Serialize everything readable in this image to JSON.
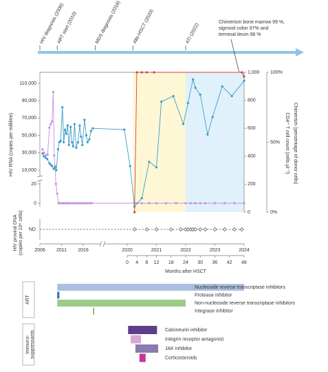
{
  "chart_data": [
    {
      "type": "timeline",
      "events": [
        {
          "label": "HIV diagnosis (2006)",
          "x": 2006
        },
        {
          "label": "ART start (2010)",
          "x": 2010
        },
        {
          "label": "MDS diagnosis (2018)",
          "x": 2018.8
        },
        {
          "label": "Allo-HSCT (2020)",
          "x": 2020.2
        },
        {
          "label": "ATI (2022)",
          "x": 2022
        }
      ],
      "annotation": [
        "Chimerism bone marrow 99 %,",
        "sigmoid colon 97% and",
        "terminal ileum 98 %"
      ],
      "color": "#8fc4e6"
    },
    {
      "type": "line",
      "ylabel": "HIV RNA (copies per millilitre)",
      "y2label": "CD4⁺ T cell count (cells µl⁻¹)",
      "y3label": "Chimerism (percentage of donor cells)",
      "xlabel": "Months after HSCT",
      "xticks": [
        2006,
        2011,
        2016,
        2020,
        2021,
        2022,
        2023,
        2024
      ],
      "month_ticks": [
        0,
        4,
        8,
        12,
        18,
        24,
        30,
        36,
        42,
        48
      ],
      "ylim_low": [
        0,
        20
      ],
      "yticks_low": [
        0,
        20
      ],
      "ylim": [
        10000,
        110000
      ],
      "yticks": [
        {
          "value": 10000,
          "label": "10,000"
        },
        {
          "value": 30000,
          "label": "30,000"
        },
        {
          "value": 50000,
          "label": "50,000"
        },
        {
          "value": 70000,
          "label": "70,000"
        },
        {
          "value": 90000,
          "label": "90,000"
        },
        {
          "value": 110000,
          "label": "110,000"
        }
      ],
      "y2lim": [
        0,
        1000
      ],
      "y2ticks": [
        0,
        200,
        400,
        600,
        800,
        {
          "value": 1000,
          "label": "1,000"
        }
      ],
      "y3lim": [
        0,
        100
      ],
      "y3ticks": [
        {
          "value": 0,
          "label": "0%"
        },
        {
          "value": 50,
          "label": "50%"
        },
        {
          "value": 100,
          "label": "100%"
        }
      ],
      "shaded": [
        {
          "from": 2020.2,
          "to": 2022,
          "color": "#fdf7d6"
        },
        {
          "from": 2022,
          "to": 2024,
          "color": "#e0f1fb"
        }
      ],
      "series": [
        {
          "color": "#c98ee0",
          "axis": "y",
          "x": [
            2006.6,
            2007.0,
            2007.4,
            2007.8,
            2008.2,
            2008.5,
            2008.8,
            2009.1,
            2009.3,
            2009.5,
            2009.7,
            2010.0,
            2010.3,
            2010.6,
            2011.0,
            2011.4,
            2011.8,
            2012.2,
            2012.6,
            2013.0,
            2013.5,
            2014.0,
            2014.5,
            2015.0,
            2015.5,
            2016.0,
            2016.5,
            2017.0,
            2017.5,
            2018.0,
            2020.25,
            2020.33,
            2020.5,
            2020.75,
            2021.0,
            2021.33,
            2021.67,
            2022.0,
            2022.17,
            2022.33,
            2022.5,
            2022.67,
            2023.0,
            2023.33,
            2023.67,
            2024.0
          ],
          "values": [
            34000,
            30000,
            27000,
            28000,
            59000,
            63000,
            66000,
            100000,
            27000,
            15000,
            20,
            10,
            0,
            0,
            0,
            0,
            0,
            0,
            0,
            0,
            0,
            0,
            0,
            0,
            0,
            0,
            0,
            0,
            0,
            0,
            0,
            0,
            0,
            0,
            0,
            0,
            0,
            0,
            0,
            0,
            0,
            0,
            0,
            0,
            0,
            0
          ]
        },
        {
          "color": "#3a9cc8",
          "axis": "y2",
          "x": [
            2006.6,
            2006.9,
            2007.3,
            2007.7,
            2008.2,
            2008.5,
            2008.8,
            2009.2,
            2009.5,
            2009.8,
            2010.2,
            2010.5,
            2010.8,
            2011.2,
            2011.5,
            2011.8,
            2012.1,
            2012.4,
            2012.7,
            2013.1,
            2013.4,
            2013.7,
            2014.0,
            2014.4,
            2014.8,
            2015.2,
            2015.5,
            2015.8,
            2016.3,
            2016.7,
            2017.0,
            2017.4,
            2017.8,
            2018.2,
            2019.9,
            2020.1,
            2020.25,
            2020.5,
            2020.75,
            2021.0,
            2021.17,
            2021.58,
            2021.92,
            2022.08,
            2022.25,
            2022.33,
            2022.5,
            2022.75,
            2022.92,
            2023.25,
            2023.58,
            2024.0
          ],
          "values": [
            420,
            400,
            390,
            380,
            350,
            340,
            330,
            310,
            320,
            300,
            450,
            500,
            510,
            750,
            500,
            590,
            560,
            620,
            480,
            610,
            500,
            470,
            630,
            460,
            500,
            620,
            540,
            480,
            660,
            550,
            500,
            520,
            580,
            600,
            590,
            330,
            40,
            100,
            360,
            320,
            790,
            830,
            630,
            780,
            950,
            890,
            840,
            555,
            680,
            900,
            830,
            940
          ]
        },
        {
          "color": "#d9403a",
          "axis": "y3",
          "x": [
            2020.25,
            2020.33,
            2020.5,
            2020.67,
            2020.92,
            2023.92,
            2024.0
          ],
          "values": [
            0,
            100,
            100,
            100,
            100,
            100,
            97
          ]
        }
      ]
    },
    {
      "type": "strip",
      "ylabel": [
        "HIV proviral DNA",
        "(copies per 10⁶ cells)"
      ],
      "category": "ND",
      "x": [
        2020.25,
        2020.67,
        2021.0,
        2021.5,
        2021.83,
        2022.0,
        2022.08,
        2022.17,
        2022.25,
        2022.33,
        2022.5,
        2022.67,
        2023.0,
        2023.33,
        2023.67,
        2023.92
      ]
    },
    {
      "type": "gantt",
      "label": [
        "ART"
      ],
      "series": [
        {
          "name": "Nucleoside reverse transcriptase inhibitors",
          "color": "#aabfdf",
          "label_color": "#93a9cc",
          "start": 2010,
          "end": 2024
        },
        {
          "name": "Protease inhibitor",
          "color": "#3a6db3",
          "label_color": "#3a6db3",
          "start": 2010,
          "end": 2010.5
        },
        {
          "name": "Non-nucleoside reverse transcriptase inhibitors",
          "color": "#9dcb87",
          "label_color": "#86bb6d",
          "start": 2010,
          "end": 2022
        },
        {
          "name": "Integrase inhibitor",
          "color": "#6aa84f",
          "label_color": "#777777",
          "start": 2018.3,
          "end": 2018.5
        }
      ]
    },
    {
      "type": "gantt",
      "label": [
        "Immuno-",
        "suppressants"
      ],
      "series": [
        {
          "name": "Calcineurin inhibitor",
          "color": "#5c3f8a",
          "label_color": "#6a5a8a",
          "start": 2020.03,
          "end": 2021.02
        },
        {
          "name": "Integrin receptor antagonist",
          "color": "#d7a9d0",
          "label_color": "#b58bb0",
          "start": 2020.12,
          "end": 2020.47
        },
        {
          "name": "JAK inhibitor",
          "color": "#8a7bb0",
          "label_color": "#7a6ca0",
          "start": 2020.28,
          "end": 2021.06
        },
        {
          "name": "Corticosteroids",
          "color": "#c2379b",
          "label_color": "#b0408f",
          "start": 2020.42,
          "end": 2020.63
        }
      ]
    }
  ]
}
